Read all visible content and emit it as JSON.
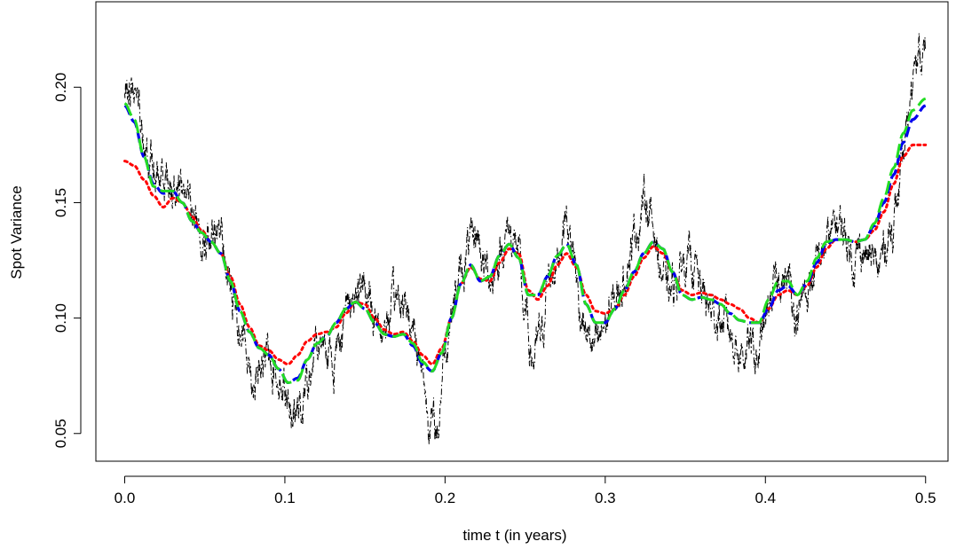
{
  "chart_data": {
    "type": "line",
    "title": "",
    "xlabel": "time t (in years)",
    "ylabel": "Spot Variance",
    "xlim": [
      -0.018,
      0.514
    ],
    "ylim": [
      0.038,
      0.237
    ],
    "x_ticks": [
      0.0,
      0.1,
      0.2,
      0.3,
      0.4,
      0.5
    ],
    "x_tick_labels": [
      "0.0",
      "0.1",
      "0.2",
      "0.3",
      "0.4",
      "0.5"
    ],
    "y_ticks": [
      0.05,
      0.1,
      0.15,
      0.2
    ],
    "y_tick_labels": [
      "0.05",
      "0.10",
      "0.15",
      "0.20"
    ],
    "grid": false,
    "legend": "none",
    "series": [
      {
        "style": "dashdot",
        "color": "#000000",
        "noisy": true,
        "x": [
          0.0,
          0.004,
          0.008,
          0.012,
          0.016,
          0.02,
          0.025,
          0.03,
          0.035,
          0.04,
          0.045,
          0.05,
          0.055,
          0.06,
          0.064,
          0.068,
          0.072,
          0.076,
          0.08,
          0.085,
          0.09,
          0.095,
          0.1,
          0.105,
          0.11,
          0.115,
          0.12,
          0.125,
          0.13,
          0.135,
          0.14,
          0.145,
          0.15,
          0.155,
          0.16,
          0.165,
          0.17,
          0.175,
          0.18,
          0.185,
          0.19,
          0.195,
          0.2,
          0.205,
          0.21,
          0.215,
          0.22,
          0.225,
          0.23,
          0.235,
          0.24,
          0.245,
          0.25,
          0.255,
          0.26,
          0.265,
          0.27,
          0.275,
          0.28,
          0.285,
          0.29,
          0.295,
          0.3,
          0.305,
          0.31,
          0.315,
          0.32,
          0.325,
          0.33,
          0.335,
          0.34,
          0.345,
          0.35,
          0.355,
          0.36,
          0.365,
          0.37,
          0.375,
          0.38,
          0.385,
          0.39,
          0.395,
          0.4,
          0.405,
          0.41,
          0.415,
          0.42,
          0.425,
          0.43,
          0.435,
          0.44,
          0.445,
          0.45,
          0.455,
          0.46,
          0.465,
          0.47,
          0.475,
          0.48,
          0.485,
          0.488,
          0.491,
          0.494,
          0.497,
          0.5
        ],
        "y": [
          0.196,
          0.2,
          0.197,
          0.182,
          0.168,
          0.16,
          0.163,
          0.158,
          0.16,
          0.152,
          0.142,
          0.135,
          0.13,
          0.14,
          0.118,
          0.106,
          0.098,
          0.088,
          0.075,
          0.078,
          0.085,
          0.078,
          0.07,
          0.064,
          0.06,
          0.072,
          0.088,
          0.092,
          0.08,
          0.095,
          0.108,
          0.112,
          0.11,
          0.102,
          0.095,
          0.1,
          0.108,
          0.105,
          0.098,
          0.082,
          0.058,
          0.05,
          0.088,
          0.108,
          0.118,
          0.13,
          0.136,
          0.122,
          0.118,
          0.13,
          0.138,
          0.13,
          0.1,
          0.082,
          0.092,
          0.118,
          0.126,
          0.145,
          0.128,
          0.102,
          0.09,
          0.086,
          0.098,
          0.105,
          0.114,
          0.128,
          0.14,
          0.152,
          0.14,
          0.12,
          0.11,
          0.118,
          0.126,
          0.124,
          0.112,
          0.104,
          0.1,
          0.098,
          0.092,
          0.085,
          0.088,
          0.082,
          0.098,
          0.112,
          0.118,
          0.115,
          0.1,
          0.11,
          0.118,
          0.128,
          0.134,
          0.142,
          0.136,
          0.126,
          0.13,
          0.126,
          0.12,
          0.132,
          0.142,
          0.16,
          0.178,
          0.198,
          0.222,
          0.212,
          0.213
        ]
      },
      {
        "style": "dotted",
        "color": "#ff0000",
        "x": [
          0.0,
          0.006,
          0.012,
          0.018,
          0.024,
          0.03,
          0.036,
          0.042,
          0.048,
          0.054,
          0.06,
          0.066,
          0.072,
          0.078,
          0.084,
          0.09,
          0.096,
          0.102,
          0.108,
          0.114,
          0.12,
          0.126,
          0.132,
          0.138,
          0.144,
          0.15,
          0.156,
          0.162,
          0.168,
          0.174,
          0.18,
          0.186,
          0.192,
          0.198,
          0.204,
          0.21,
          0.216,
          0.222,
          0.228,
          0.234,
          0.24,
          0.246,
          0.252,
          0.258,
          0.264,
          0.27,
          0.276,
          0.282,
          0.288,
          0.294,
          0.3,
          0.306,
          0.312,
          0.318,
          0.324,
          0.33,
          0.336,
          0.342,
          0.348,
          0.354,
          0.36,
          0.366,
          0.372,
          0.378,
          0.384,
          0.39,
          0.396,
          0.402,
          0.408,
          0.414,
          0.42,
          0.426,
          0.432,
          0.438,
          0.444,
          0.45,
          0.456,
          0.462,
          0.468,
          0.474,
          0.48,
          0.486,
          0.492,
          0.5
        ],
        "y": [
          0.168,
          0.166,
          0.16,
          0.153,
          0.148,
          0.152,
          0.15,
          0.144,
          0.138,
          0.133,
          0.128,
          0.118,
          0.106,
          0.096,
          0.088,
          0.086,
          0.082,
          0.08,
          0.084,
          0.09,
          0.093,
          0.094,
          0.096,
          0.102,
          0.107,
          0.106,
          0.1,
          0.095,
          0.093,
          0.094,
          0.09,
          0.084,
          0.08,
          0.087,
          0.1,
          0.115,
          0.122,
          0.117,
          0.116,
          0.124,
          0.13,
          0.128,
          0.112,
          0.108,
          0.114,
          0.123,
          0.128,
          0.122,
          0.11,
          0.103,
          0.102,
          0.104,
          0.11,
          0.118,
          0.126,
          0.131,
          0.128,
          0.12,
          0.112,
          0.11,
          0.111,
          0.11,
          0.108,
          0.106,
          0.104,
          0.1,
          0.098,
          0.104,
          0.11,
          0.112,
          0.11,
          0.114,
          0.122,
          0.13,
          0.134,
          0.134,
          0.133,
          0.134,
          0.138,
          0.146,
          0.158,
          0.17,
          0.175,
          0.175
        ]
      },
      {
        "style": "dashed",
        "color": "#0000ee",
        "x": [
          0.0,
          0.006,
          0.012,
          0.018,
          0.024,
          0.03,
          0.036,
          0.042,
          0.048,
          0.054,
          0.06,
          0.066,
          0.072,
          0.078,
          0.084,
          0.09,
          0.096,
          0.102,
          0.108,
          0.114,
          0.12,
          0.126,
          0.132,
          0.138,
          0.144,
          0.15,
          0.156,
          0.162,
          0.168,
          0.174,
          0.18,
          0.186,
          0.192,
          0.198,
          0.204,
          0.21,
          0.216,
          0.222,
          0.228,
          0.234,
          0.24,
          0.246,
          0.252,
          0.258,
          0.264,
          0.27,
          0.276,
          0.282,
          0.288,
          0.294,
          0.3,
          0.306,
          0.312,
          0.318,
          0.324,
          0.33,
          0.336,
          0.342,
          0.348,
          0.354,
          0.36,
          0.366,
          0.372,
          0.378,
          0.384,
          0.39,
          0.396,
          0.402,
          0.408,
          0.414,
          0.42,
          0.426,
          0.432,
          0.438,
          0.444,
          0.45,
          0.456,
          0.462,
          0.468,
          0.474,
          0.48,
          0.486,
          0.492,
          0.5
        ],
        "y": [
          0.192,
          0.185,
          0.17,
          0.158,
          0.154,
          0.155,
          0.15,
          0.142,
          0.137,
          0.133,
          0.128,
          0.116,
          0.103,
          0.094,
          0.087,
          0.084,
          0.078,
          0.072,
          0.074,
          0.082,
          0.089,
          0.092,
          0.098,
          0.104,
          0.107,
          0.104,
          0.098,
          0.093,
          0.092,
          0.093,
          0.088,
          0.08,
          0.077,
          0.085,
          0.1,
          0.115,
          0.123,
          0.116,
          0.118,
          0.127,
          0.132,
          0.126,
          0.11,
          0.11,
          0.118,
          0.127,
          0.132,
          0.123,
          0.106,
          0.098,
          0.098,
          0.104,
          0.112,
          0.12,
          0.128,
          0.133,
          0.13,
          0.12,
          0.11,
          0.108,
          0.109,
          0.108,
          0.106,
          0.102,
          0.099,
          0.098,
          0.098,
          0.104,
          0.112,
          0.114,
          0.11,
          0.115,
          0.124,
          0.132,
          0.134,
          0.134,
          0.133,
          0.134,
          0.14,
          0.15,
          0.162,
          0.176,
          0.186,
          0.192
        ]
      },
      {
        "style": "longdash",
        "color": "#22dd22",
        "x": [
          0.0,
          0.006,
          0.012,
          0.018,
          0.024,
          0.03,
          0.036,
          0.042,
          0.048,
          0.054,
          0.06,
          0.066,
          0.072,
          0.078,
          0.084,
          0.09,
          0.096,
          0.102,
          0.108,
          0.114,
          0.12,
          0.126,
          0.132,
          0.138,
          0.144,
          0.15,
          0.156,
          0.162,
          0.168,
          0.174,
          0.18,
          0.186,
          0.192,
          0.198,
          0.204,
          0.21,
          0.216,
          0.222,
          0.228,
          0.234,
          0.24,
          0.246,
          0.252,
          0.258,
          0.264,
          0.27,
          0.276,
          0.282,
          0.288,
          0.294,
          0.3,
          0.306,
          0.312,
          0.318,
          0.324,
          0.33,
          0.336,
          0.342,
          0.348,
          0.354,
          0.36,
          0.366,
          0.372,
          0.378,
          0.384,
          0.39,
          0.396,
          0.402,
          0.408,
          0.414,
          0.42,
          0.426,
          0.432,
          0.438,
          0.444,
          0.45,
          0.456,
          0.462,
          0.468,
          0.474,
          0.48,
          0.486,
          0.492,
          0.5
        ],
        "y": [
          0.193,
          0.186,
          0.17,
          0.157,
          0.155,
          0.155,
          0.15,
          0.142,
          0.137,
          0.133,
          0.128,
          0.116,
          0.103,
          0.094,
          0.087,
          0.084,
          0.078,
          0.072,
          0.073,
          0.082,
          0.089,
          0.092,
          0.098,
          0.104,
          0.107,
          0.104,
          0.098,
          0.093,
          0.092,
          0.093,
          0.089,
          0.081,
          0.077,
          0.085,
          0.1,
          0.115,
          0.123,
          0.116,
          0.118,
          0.127,
          0.132,
          0.126,
          0.11,
          0.11,
          0.118,
          0.127,
          0.132,
          0.123,
          0.106,
          0.098,
          0.098,
          0.104,
          0.112,
          0.12,
          0.128,
          0.133,
          0.13,
          0.12,
          0.11,
          0.108,
          0.109,
          0.108,
          0.106,
          0.102,
          0.099,
          0.098,
          0.098,
          0.108,
          0.116,
          0.116,
          0.11,
          0.116,
          0.126,
          0.133,
          0.134,
          0.134,
          0.133,
          0.134,
          0.141,
          0.152,
          0.165,
          0.18,
          0.19,
          0.195
        ]
      }
    ]
  }
}
